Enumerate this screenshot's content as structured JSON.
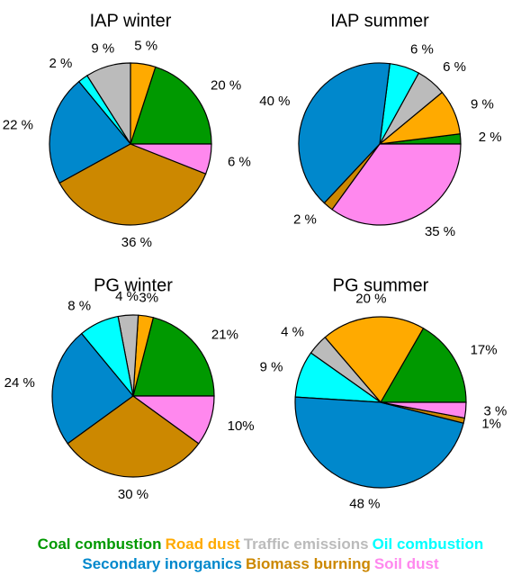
{
  "chart_data": [
    {
      "type": "pie",
      "title": "IAP winter",
      "categories": [
        "Coal combustion",
        "Road dust",
        "Traffic emissions",
        "Oil combustion",
        "Secondary inorganics",
        "Biomass burning",
        "Soil dust"
      ],
      "colors": [
        "#009900",
        "#ffaa00",
        "#bbbbbb",
        "#00ffff",
        "#0088cc",
        "#cc8800",
        "#ff88ee"
      ],
      "values": [
        20,
        5,
        9,
        2,
        22,
        36,
        6
      ],
      "value_labels": [
        "20 %",
        "5 %",
        "9 %",
        "2 %",
        "22 %",
        "36 %",
        "6 %"
      ]
    },
    {
      "type": "pie",
      "title": "IAP summer",
      "categories": [
        "Coal combustion",
        "Road dust",
        "Traffic emissions",
        "Oil combustion",
        "Secondary inorganics",
        "Biomass burning",
        "Soil dust"
      ],
      "colors": [
        "#009900",
        "#ffaa00",
        "#bbbbbb",
        "#00ffff",
        "#0088cc",
        "#cc8800",
        "#ff88ee"
      ],
      "values": [
        2,
        9,
        6,
        6,
        40,
        2,
        35
      ],
      "value_labels": [
        "2 %",
        "9 %",
        "6 %",
        "6 %",
        "40 %",
        "2 %",
        "35 %"
      ]
    },
    {
      "type": "pie",
      "title": "PG winter",
      "categories": [
        "Coal combustion",
        "Road dust",
        "Traffic emissions",
        "Oil combustion",
        "Secondary inorganics",
        "Biomass burning",
        "Soil dust"
      ],
      "colors": [
        "#009900",
        "#ffaa00",
        "#bbbbbb",
        "#00ffff",
        "#0088cc",
        "#cc8800",
        "#ff88ee"
      ],
      "values": [
        21,
        3,
        4,
        8,
        24,
        30,
        10
      ],
      "value_labels": [
        "21%",
        "3%",
        "4 %",
        "8 %",
        "24 %",
        "30 %",
        "10%"
      ]
    },
    {
      "type": "pie",
      "title": "PG summer",
      "categories": [
        "Coal combustion",
        "Road dust",
        "Traffic emissions",
        "Oil combustion",
        "Secondary inorganics",
        "Biomass burning",
        "Soil dust"
      ],
      "colors": [
        "#009900",
        "#ffaa00",
        "#bbbbbb",
        "#00ffff",
        "#0088cc",
        "#cc8800",
        "#ff88ee"
      ],
      "values": [
        17,
        20,
        4,
        9,
        48,
        1,
        3
      ],
      "value_labels": [
        "17%",
        "20 %",
        "4 %",
        "9 %",
        "48 %",
        "1%",
        "3 %"
      ]
    }
  ]
}
